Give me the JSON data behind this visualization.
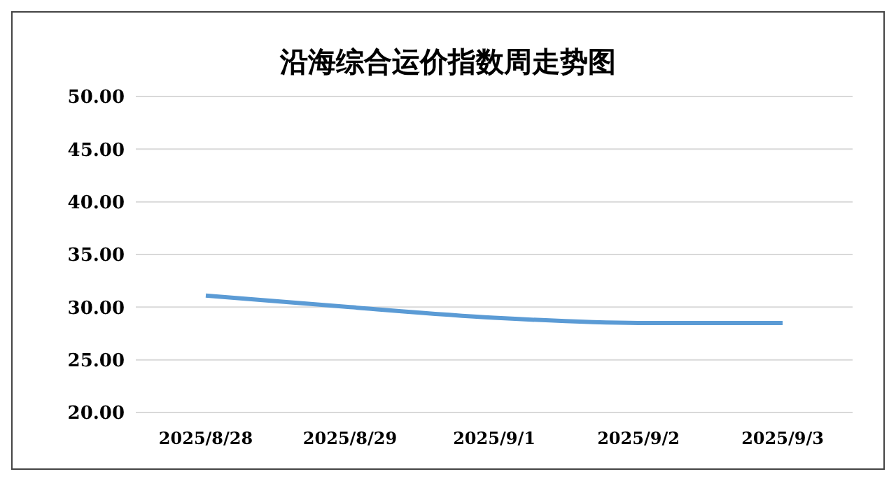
{
  "chart_data": {
    "type": "line",
    "title": "沿海综合运价指数周走势图",
    "categories": [
      "2025/8/28",
      "2025/8/29",
      "2025/9/1",
      "2025/9/2",
      "2025/9/3"
    ],
    "series": [
      {
        "color": "#5b9bd5",
        "values": [
          31.1,
          30.0,
          29.0,
          28.5,
          28.5
        ]
      }
    ],
    "ylim": [
      20,
      50
    ],
    "yticks": [
      {
        "value": 20,
        "label": "20.00"
      },
      {
        "value": 25,
        "label": "25.00"
      },
      {
        "value": 30,
        "label": "30.00"
      },
      {
        "value": 35,
        "label": "35.00"
      },
      {
        "value": 40,
        "label": "40.00"
      },
      {
        "value": 45,
        "label": "45.00"
      },
      {
        "value": 50,
        "label": "50.00"
      }
    ],
    "grid": "y",
    "marker": "none",
    "line_style": "solid",
    "legend": false
  }
}
